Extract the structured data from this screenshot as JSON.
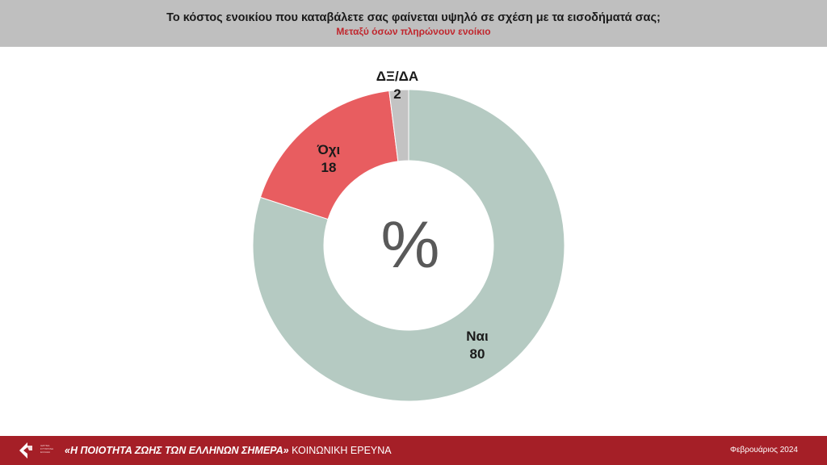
{
  "header": {
    "title": "Το κόστος ενοικίου που καταβάλετε σας φαίνεται υψηλό σε σχέση με τα εισοδήματά σας;",
    "subtitle": "Μεταξύ όσων πληρώνουν ενοίκιο"
  },
  "chart_data": {
    "type": "pie",
    "center_label": "%",
    "slices": [
      {
        "label": "Ναι",
        "value": 80,
        "color": "#b5cac2"
      },
      {
        "label": "Όχι",
        "value": 18,
        "color": "#e85d60"
      },
      {
        "label": "ΔΞ/ΔΑ",
        "value": 2,
        "color": "#c3c3c3"
      }
    ]
  },
  "footer": {
    "logo_text": "ΙΔΡΥΜΑ ΣΥΓΧΡΟΝΗ ΕΛΛΑΔΑ",
    "title_bold": "«Η ΠΟΙΟΤΗΤΑ ΖΩΗΣ ΤΩΝ ΕΛΛΗΝΩΝ ΣΗΜΕΡΑ»",
    "title_rest": "ΚΟΙΝΩΝΙΚΗ ΕΡΕΥΝΑ",
    "date": "Φεβρουάριος 2024"
  },
  "colors": {
    "header_bg": "#bfbfbf",
    "footer_bg": "#a51f27",
    "accent": "#c0262d"
  }
}
